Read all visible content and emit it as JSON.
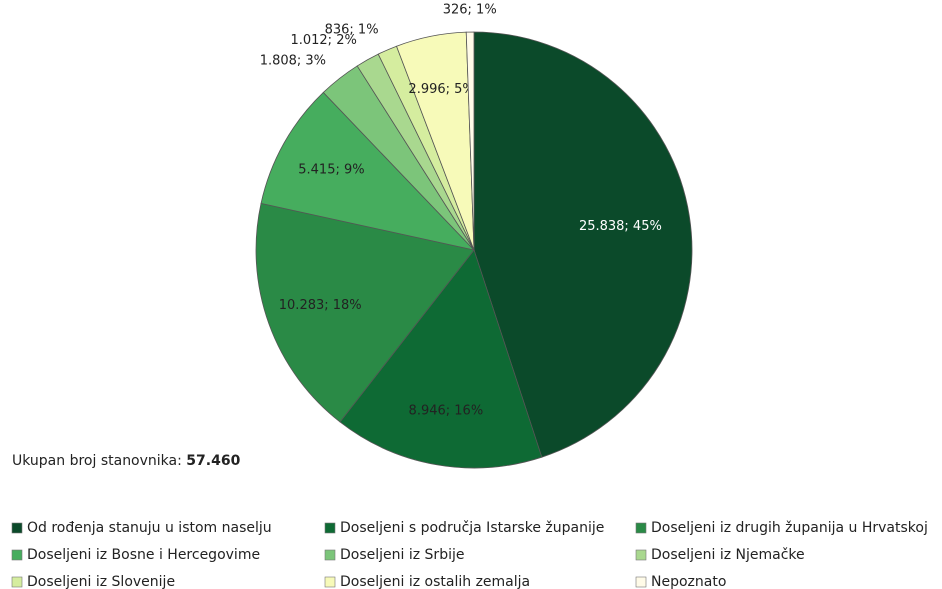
{
  "chart_data": {
    "type": "pie",
    "categories": [
      "Od rođenja stanuju u istom naselju",
      "Doseljeni s područja Istarske županije",
      "Doseljeni iz drugih županija u Hrvatskoj",
      "Doseljeni iz Bosne i Hercegovime",
      "Doseljeni iz Srbije",
      "Doseljeni iz Njemačke",
      "Doseljeni iz Slovenije",
      "Doseljeni iz ostalih zemalja",
      "Nepoznato"
    ],
    "values": [
      25838,
      8946,
      10283,
      5415,
      1808,
      1012,
      836,
      2996,
      326
    ],
    "value_labels": [
      "25.838; 45%",
      "8.946; 16%",
      "10.283; 18%",
      "5.415; 9%",
      "1.808; 3%",
      "1.012; 2%",
      "836; 1%",
      "2.996; 5%",
      "326; 1%"
    ],
    "colors": [
      "#0b4a2a",
      "#0e6a34",
      "#2a8a46",
      "#46ad5e",
      "#7cc57a",
      "#a9d88f",
      "#d5ed9f",
      "#f7fab9",
      "#fffbe8"
    ],
    "total_label": "Ukupan broj stanovnika:",
    "total_value_label": "57.460",
    "legend": "bottom"
  }
}
